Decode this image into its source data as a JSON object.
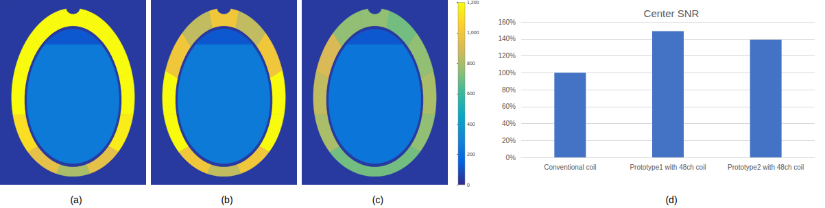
{
  "chart_data": [
    {
      "type": "heatmap",
      "tick_labels": false,
      "colorbar": {
        "range": [
          0,
          1200
        ],
        "ticks": [
          0,
          200,
          400,
          600,
          800,
          1000,
          1200
        ]
      },
      "panels": [
        {
          "label": "(a)",
          "shell": [
            1200,
            1200,
            1200,
            1200,
            1150,
            950,
            800,
            950,
            1100,
            1200,
            1200,
            1200
          ],
          "inner": 250,
          "cap": 120,
          "background": 40
        },
        {
          "label": "(b)",
          "shell": [
            1000,
            850,
            1000,
            1200,
            1200,
            1000,
            850,
            1000,
            1200,
            1200,
            1000,
            850
          ],
          "inner": 250,
          "cap": 120,
          "background": 40
        },
        {
          "label": "(c)",
          "shell": [
            750,
            700,
            750,
            800,
            750,
            700,
            700,
            700,
            800,
            850,
            900,
            750
          ],
          "inner": 230,
          "cap": 120,
          "background": 40
        }
      ]
    },
    {
      "type": "bar",
      "title": "Center SNR",
      "annotation": "(d)",
      "categories": [
        "Conventional coil",
        "Prototype1 with 48ch coil",
        "Prototype2 with 48ch coil"
      ],
      "values": [
        100,
        149,
        139
      ],
      "color": "#4472c4",
      "ylim": [
        0,
        160
      ],
      "yticks": [
        {
          "value": 0,
          "label": "0%"
        },
        {
          "value": 20,
          "label": "20%"
        },
        {
          "value": 40,
          "label": "40%"
        },
        {
          "value": 60,
          "label": "60%"
        },
        {
          "value": 80,
          "label": "80%"
        },
        {
          "value": 100,
          "label": "100%"
        },
        {
          "value": 120,
          "label": "120%"
        },
        {
          "value": 140,
          "label": "140%"
        },
        {
          "value": 160,
          "label": "160%"
        }
      ],
      "grid": true
    }
  ]
}
